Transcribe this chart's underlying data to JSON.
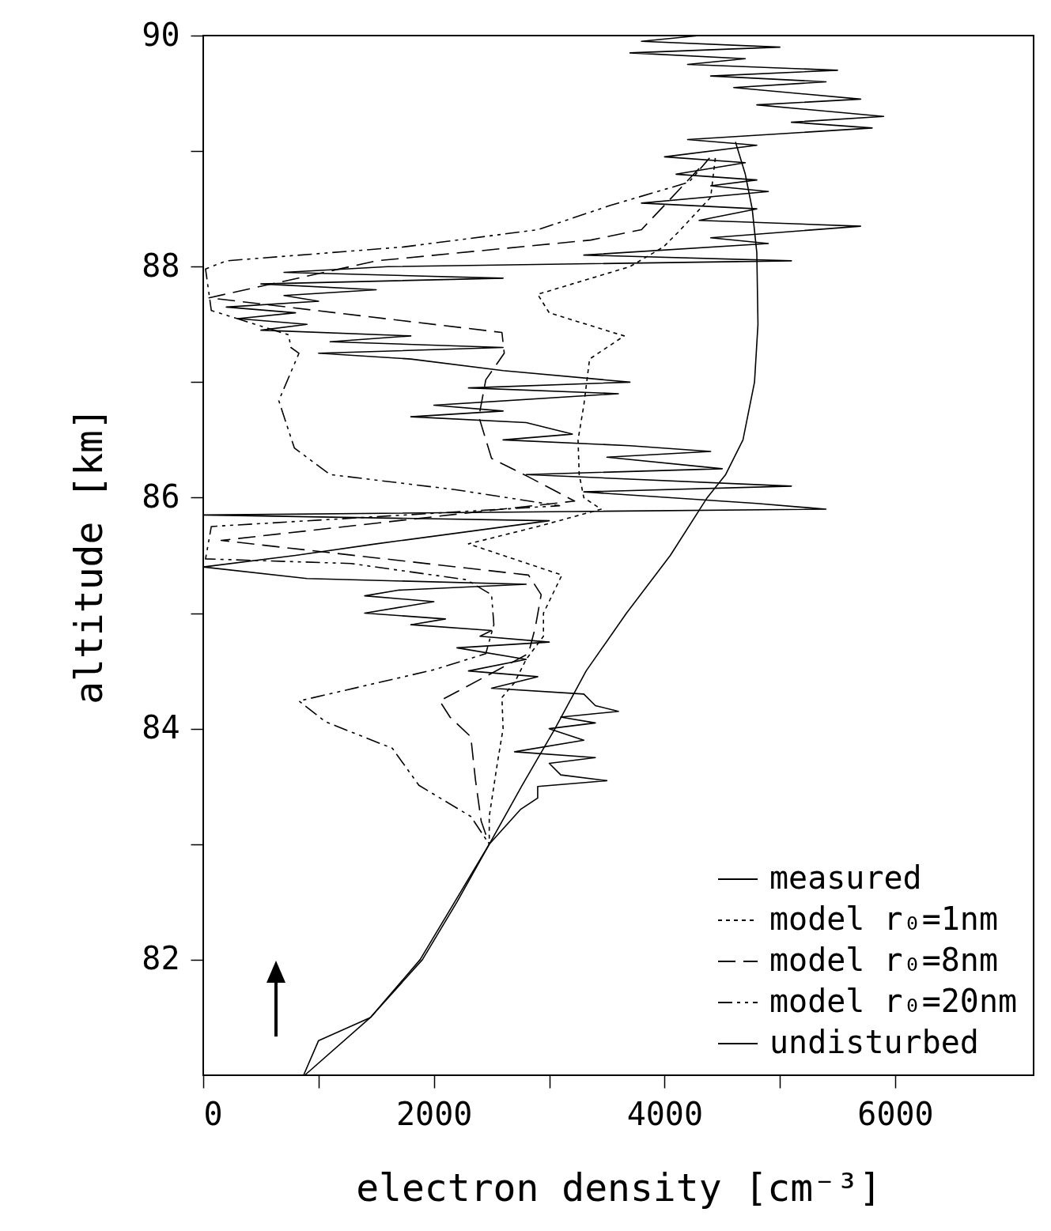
{
  "chart_data": {
    "type": "line",
    "xlabel": "electron density [cm⁻³]",
    "ylabel": "altitude [km]",
    "xlim": [
      0,
      7200
    ],
    "xticks": [
      0,
      {
        "value": 1000,
        "label": null
      },
      2000,
      {
        "value": 3000,
        "label": null
      },
      4000,
      {
        "value": 5000,
        "label": null
      },
      6000
    ],
    "ylim": [
      81,
      90
    ],
    "yticks": [
      82,
      {
        "value": 83,
        "label": null
      },
      84,
      {
        "value": 85,
        "label": null
      },
      86,
      {
        "value": 87,
        "label": null
      },
      88,
      {
        "value": 89,
        "label": null
      },
      90
    ],
    "grid": false,
    "legend": "bottom right",
    "marker": "none",
    "series": [
      {
        "name": "measured",
        "color": "#000000",
        "line_style": "solid",
        "x": [
          4300,
          3800,
          5000,
          3700,
          4700,
          4200,
          5500,
          4400,
          5400,
          4600,
          5700,
          4800,
          5900,
          5100,
          5800,
          5000,
          4200,
          4800,
          4000,
          4700,
          4100,
          4800,
          4400,
          4900,
          3800,
          4800,
          4300,
          5700,
          4400,
          4900,
          3300,
          5100,
          1600,
          700,
          2600,
          500,
          1500,
          700,
          1000,
          200,
          800,
          300,
          900,
          500,
          1800,
          1100,
          2600,
          1000,
          1800,
          2600,
          3700,
          2300,
          3600,
          2000,
          2600,
          1800,
          2800,
          3200,
          2600,
          3700,
          4400,
          3500,
          4500,
          2800,
          5100,
          3300,
          4800,
          5400,
          3200,
          0,
          3000,
          1500,
          800,
          0,
          900,
          2800,
          1700,
          1400,
          2000,
          1400,
          2100,
          1800,
          2500,
          2400,
          3000,
          2200,
          2800,
          2300,
          2900,
          2500,
          3300,
          3400,
          3600,
          3100,
          3400,
          3000,
          3300,
          2700,
          3400,
          3000,
          3100,
          3500,
          2900,
          2900,
          2750,
          2480,
          2200,
          1900,
          1450,
          1000,
          870
        ],
        "values": [
          90,
          89.95,
          89.9,
          89.85,
          89.8,
          89.75,
          89.7,
          89.65,
          89.6,
          89.55,
          89.45,
          89.4,
          89.3,
          89.25,
          89.2,
          89.15,
          89.1,
          89.05,
          88.95,
          88.9,
          88.8,
          88.75,
          88.7,
          88.65,
          88.55,
          88.5,
          88.4,
          88.35,
          88.25,
          88.2,
          88.1,
          88.05,
          88,
          87.95,
          87.9,
          87.85,
          87.8,
          87.75,
          87.7,
          87.65,
          87.6,
          87.55,
          87.5,
          87.45,
          87.4,
          87.35,
          87.3,
          87.25,
          87.2,
          87.1,
          87,
          86.95,
          86.9,
          86.8,
          86.75,
          86.7,
          86.65,
          86.55,
          86.5,
          86.45,
          86.4,
          86.35,
          86.25,
          86.2,
          86.1,
          86.05,
          85.95,
          85.9,
          85.88,
          85.85,
          85.8,
          85.6,
          85.5,
          85.4,
          85.3,
          85.25,
          85.2,
          85.15,
          85.1,
          85,
          84.95,
          84.9,
          84.85,
          84.8,
          84.75,
          84.7,
          84.6,
          84.5,
          84.45,
          84.35,
          84.3,
          84.2,
          84.15,
          84.1,
          84.05,
          84,
          83.9,
          83.8,
          83.75,
          83.7,
          83.6,
          83.55,
          83.5,
          83.4,
          83.3,
          83,
          82.5,
          82,
          81.5,
          81.3,
          81
        ]
      },
      {
        "name": "model r₀=1nm",
        "color": "#000000",
        "line_style": "dotted",
        "x": [
          4440,
          4400,
          4120,
          3990,
          3700,
          3200,
          2900,
          3000,
          3650,
          3350,
          3300,
          3250,
          3260,
          3300,
          3450,
          2900,
          2300,
          3110,
          2950,
          2950,
          2800,
          2700,
          2590,
          2600,
          2550,
          2480,
          2480
        ],
        "values": [
          88.94,
          88.6,
          88.3,
          88.17,
          88,
          87.85,
          87.76,
          87.6,
          87.4,
          87.2,
          86.8,
          86.5,
          86.2,
          86,
          85.9,
          85.75,
          85.6,
          85.33,
          85,
          84.8,
          84.6,
          84.4,
          84.27,
          84,
          83.7,
          83.24,
          83
        ]
      },
      {
        "name": "model r₀=8nm",
        "color": "#000000",
        "line_style": "dashed",
        "x": [
          4300,
          3800,
          3360,
          1500,
          50,
          2590,
          2610,
          2450,
          2390,
          2500,
          2820,
          3220,
          155,
          2820,
          2930,
          2880,
          2820,
          2050,
          2140,
          2320,
          2360,
          2410,
          2480
        ],
        "values": [
          88.85,
          88.32,
          88.23,
          88.05,
          87.73,
          87.43,
          87.25,
          87.02,
          86.7,
          86.34,
          86.18,
          85.97,
          85.63,
          85.33,
          85.16,
          84.88,
          84.65,
          84.24,
          84.1,
          83.93,
          83.56,
          83.2,
          83
        ]
      },
      {
        "name": "model r₀=20nm",
        "color": "#000000",
        "line_style": "dashdot",
        "x": [
          4390,
          4210,
          3530,
          2905,
          1735,
          200,
          20,
          70,
          740,
          760,
          830,
          655,
          790,
          1100,
          2180,
          3090,
          70,
          20,
          1280,
          2280,
          2500,
          2520,
          2450,
          2000,
          830,
          1060,
          1640,
          1870,
          2320,
          2480
        ],
        "values": [
          88.94,
          88.73,
          88.53,
          88.32,
          88.17,
          88.05,
          87.98,
          87.62,
          87.41,
          87.3,
          87.25,
          86.84,
          86.43,
          86.2,
          86.07,
          85.93,
          85.75,
          85.47,
          85.43,
          85.29,
          85.16,
          84.9,
          84.65,
          84.51,
          84.24,
          84.06,
          83.83,
          83.51,
          83.24,
          83
        ]
      },
      {
        "name": "undisturbed",
        "color": "#000000",
        "line_style": "solid",
        "x": [
          4615,
          4700,
          4760,
          4800,
          4810,
          4780,
          4680,
          4530,
          4370,
          4050,
          3670,
          3320,
          3050,
          2760,
          2480,
          2180,
          1880,
          1450,
          880
        ],
        "values": [
          89.08,
          88.8,
          88.5,
          88.12,
          87.5,
          87,
          86.5,
          86.2,
          86,
          85.5,
          85,
          84.5,
          84,
          83.5,
          83,
          82.5,
          82,
          81.5,
          81
        ]
      }
    ]
  }
}
